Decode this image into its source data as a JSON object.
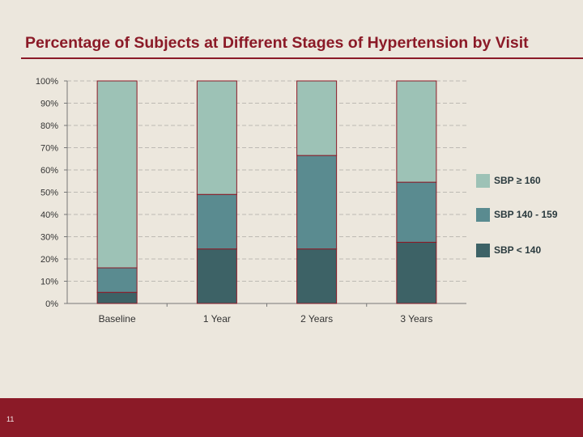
{
  "slide": {
    "title": "Percentage of Subjects at Different Stages of Hypertension by Visit",
    "page_number": "11",
    "colors": {
      "background": "#ece7dd",
      "brand": "#8b1a27",
      "gridline": "#bdbab3"
    }
  },
  "chart_data": {
    "type": "bar",
    "stacked": true,
    "title": "",
    "xlabel": "",
    "ylabel": "",
    "categories": [
      "Baseline",
      "1 Year",
      "2 Years",
      "3 Years"
    ],
    "series": [
      {
        "name": "SBP < 140",
        "values": [
          5,
          24.5,
          24.5,
          27.5
        ],
        "color": "#3d6266"
      },
      {
        "name": "SBP 140 - 159",
        "values": [
          11,
          24.5,
          42,
          27
        ],
        "color": "#5a8b90"
      },
      {
        "name": "SBP ≥ 160",
        "values": [
          84,
          51,
          33.5,
          45.5
        ],
        "color": "#9dc2b6"
      }
    ],
    "ylim": [
      0,
      100
    ],
    "yticks": [
      "0%",
      "10%",
      "20%",
      "30%",
      "40%",
      "50%",
      "60%",
      "70%",
      "80%",
      "90%",
      "100%"
    ],
    "grid": true,
    "legend_position": "right",
    "legend_order": [
      "SBP ≥ 160",
      "SBP 140 - 159",
      "SBP < 140"
    ]
  }
}
